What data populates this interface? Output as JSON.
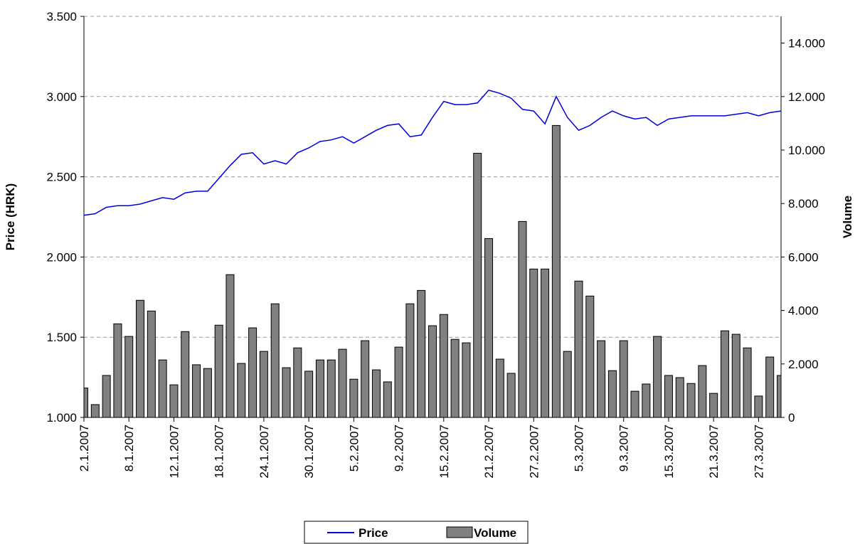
{
  "chart_data": {
    "type": "bar-line",
    "categories": [
      "2.1.2007",
      null,
      null,
      null,
      "8.1.2007",
      null,
      null,
      null,
      "12.1.2007",
      null,
      null,
      null,
      "18.1.2007",
      null,
      null,
      null,
      "24.1.2007",
      null,
      null,
      null,
      "30.1.2007",
      null,
      null,
      null,
      "5.2.2007",
      null,
      null,
      null,
      "9.2.2007",
      null,
      null,
      null,
      "15.2.2007",
      null,
      null,
      null,
      "21.2.2007",
      null,
      null,
      null,
      "27.2.2007",
      null,
      null,
      null,
      "5.3.2007",
      null,
      null,
      null,
      "9.3.2007",
      null,
      null,
      null,
      "15.3.2007",
      null,
      null,
      null,
      "21.3.2007",
      null,
      null,
      null,
      "27.3.2007",
      null,
      null
    ],
    "series": [
      {
        "name": "Price",
        "type": "line",
        "color": "#0000dd",
        "axis": "y",
        "values": [
          2.26,
          2.27,
          2.31,
          2.32,
          2.32,
          2.33,
          2.35,
          2.37,
          2.36,
          2.4,
          2.41,
          2.41,
          2.49,
          2.57,
          2.64,
          2.65,
          2.58,
          2.6,
          2.58,
          2.65,
          2.68,
          2.72,
          2.73,
          2.75,
          2.71,
          2.75,
          2.79,
          2.82,
          2.83,
          2.75,
          2.76,
          2.87,
          2.97,
          2.95,
          2.95,
          2.96,
          3.04,
          3.02,
          2.99,
          2.92,
          2.91,
          2.83,
          3.0,
          2.87,
          2.79,
          2.82,
          2.87,
          2.91,
          2.88,
          2.86,
          2.87,
          2.82,
          2.86,
          2.87,
          2.88,
          2.88,
          2.88,
          2.88,
          2.89,
          2.9,
          2.88,
          2.9,
          2.91
        ]
      },
      {
        "name": "Volume",
        "type": "bar",
        "color": "#808080",
        "axis": "y2",
        "values": [
          1100,
          480,
          1570,
          3500,
          3030,
          4380,
          3980,
          2150,
          1220,
          3210,
          1970,
          1830,
          3450,
          5340,
          2020,
          3350,
          2470,
          4250,
          1860,
          2600,
          1730,
          2150,
          2150,
          2550,
          1430,
          2870,
          1780,
          1330,
          2630,
          4250,
          4750,
          3430,
          3850,
          2920,
          2790,
          9880,
          6690,
          2180,
          1650,
          7330,
          5550,
          5550,
          10920,
          2470,
          5100,
          4540,
          2870,
          1750,
          2870,
          980,
          1250,
          3030,
          1570,
          1490,
          1270,
          1940,
          900,
          3240,
          3110,
          2600,
          800,
          2260,
          1570
        ]
      }
    ],
    "y_label": "Price (HRK)",
    "y2_label": "Volume",
    "ylim": [
      1,
      3.5
    ],
    "yticks": [
      {
        "value": 1,
        "label": "1.000"
      },
      {
        "value": 1.5,
        "label": "1.500"
      },
      {
        "value": 2,
        "label": "2.000"
      },
      {
        "value": 2.5,
        "label": "2.500"
      },
      {
        "value": 3,
        "label": "3.000"
      },
      {
        "value": 3.5,
        "label": "3.500"
      }
    ],
    "y2lim": [
      0,
      15000
    ],
    "y2ticks": [
      0,
      {
        "value": 2000,
        "label": "2.000"
      },
      {
        "value": 4000,
        "label": "4.000"
      },
      {
        "value": 6000,
        "label": "6.000"
      },
      {
        "value": 8000,
        "label": "8.000"
      },
      {
        "value": 10000,
        "label": "10.000"
      },
      {
        "value": 12000,
        "label": "12.000"
      },
      {
        "value": 14000,
        "label": "14.000"
      }
    ],
    "grid": true,
    "legend": "bottom"
  }
}
